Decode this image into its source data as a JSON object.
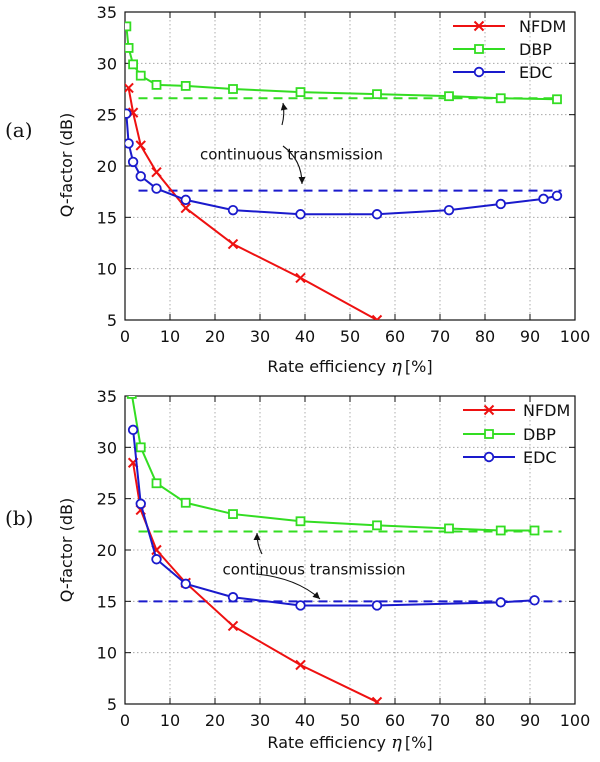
{
  "chart_data": [
    {
      "type": "line",
      "panel_label": "(a)",
      "xlabel": "Rate efficiency",
      "xlabel_symbol": "η",
      "xlabel_unit": "[%]",
      "ylabel": "Q-factor (dB)",
      "xlim": [
        0,
        100
      ],
      "ylim": [
        5,
        35
      ],
      "xticks": [
        0,
        10,
        20,
        30,
        40,
        50,
        60,
        70,
        80,
        90,
        100
      ],
      "yticks": [
        5,
        10,
        15,
        20,
        25,
        30,
        35
      ],
      "grid": true,
      "legend_position": "top-right",
      "series": [
        {
          "name": "NFDM",
          "color": "#ee1111",
          "marker": "x",
          "x": [
            0.8,
            1.8,
            3.5,
            7.0,
            13.5,
            24.0,
            39.0,
            56.0
          ],
          "y": [
            27.6,
            25.2,
            22.0,
            19.4,
            15.9,
            12.4,
            9.1,
            5.0
          ]
        },
        {
          "name": "DBP",
          "color": "#33dd22",
          "marker": "square",
          "x": [
            0.3,
            0.8,
            1.8,
            3.5,
            7.0,
            13.5,
            24.0,
            39.0,
            56.0,
            72.0,
            83.5,
            96.0
          ],
          "y": [
            33.6,
            31.5,
            29.9,
            28.8,
            27.9,
            27.8,
            27.5,
            27.2,
            27.0,
            26.8,
            26.6,
            26.5
          ]
        },
        {
          "name": "EDC",
          "color": "#1a1acc",
          "marker": "circle",
          "x": [
            0.3,
            0.8,
            1.8,
            3.5,
            7.0,
            13.5,
            24.0,
            39.0,
            56.0,
            72.0,
            83.5,
            93.0,
            96.0
          ],
          "y": [
            25.1,
            22.2,
            20.4,
            19.0,
            17.8,
            16.7,
            15.7,
            15.3,
            15.3,
            15.7,
            16.3,
            16.8,
            17.1
          ]
        }
      ],
      "reference_lines": [
        {
          "series": "DBP",
          "y": 26.6,
          "style": "dashed",
          "color": "#33dd22"
        },
        {
          "series": "EDC",
          "y": 17.6,
          "style": "dashed",
          "color": "#1a1acc"
        }
      ],
      "annotations": [
        {
          "text": "continuous transmission",
          "x": 37,
          "y": 21.1
        }
      ]
    },
    {
      "type": "line",
      "panel_label": "(b)",
      "xlabel": "Rate efficiency",
      "xlabel_symbol": "η",
      "xlabel_unit": "[%]",
      "ylabel": "Q-factor (dB)",
      "xlim": [
        0,
        100
      ],
      "ylim": [
        5,
        35
      ],
      "xticks": [
        0,
        10,
        20,
        30,
        40,
        50,
        60,
        70,
        80,
        90,
        100
      ],
      "yticks": [
        5,
        10,
        15,
        20,
        25,
        30,
        35
      ],
      "grid": true,
      "legend_position": "top-right",
      "series": [
        {
          "name": "NFDM",
          "color": "#ee1111",
          "marker": "x",
          "x": [
            1.8,
            3.5,
            7.0,
            13.5,
            24.0,
            39.0,
            56.0
          ],
          "y": [
            28.5,
            23.9,
            20.0,
            16.8,
            12.6,
            8.8,
            5.2
          ]
        },
        {
          "name": "DBP",
          "color": "#33dd22",
          "marker": "square",
          "x": [
            1.5,
            3.5,
            7.0,
            13.5,
            24.0,
            39.0,
            56.0,
            72.0,
            83.5,
            91.0
          ],
          "y": [
            35.2,
            30.0,
            26.5,
            24.6,
            23.5,
            22.8,
            22.4,
            22.1,
            21.9,
            21.9
          ]
        },
        {
          "name": "EDC",
          "color": "#1a1acc",
          "marker": "circle",
          "x": [
            1.8,
            3.5,
            7.0,
            13.5,
            24.0,
            39.0,
            56.0,
            83.5,
            91.0
          ],
          "y": [
            31.7,
            24.5,
            19.1,
            16.7,
            15.4,
            14.6,
            14.6,
            14.9,
            15.1
          ]
        }
      ],
      "reference_lines": [
        {
          "series": "DBP",
          "y": 21.8,
          "style": "dashed",
          "color": "#33dd22"
        },
        {
          "series": "EDC",
          "y": 15.0,
          "style": "dashed",
          "color": "#1a1acc"
        }
      ],
      "annotations": [
        {
          "text": "continuous transmission",
          "x": 42,
          "y": 18.1
        }
      ]
    }
  ]
}
